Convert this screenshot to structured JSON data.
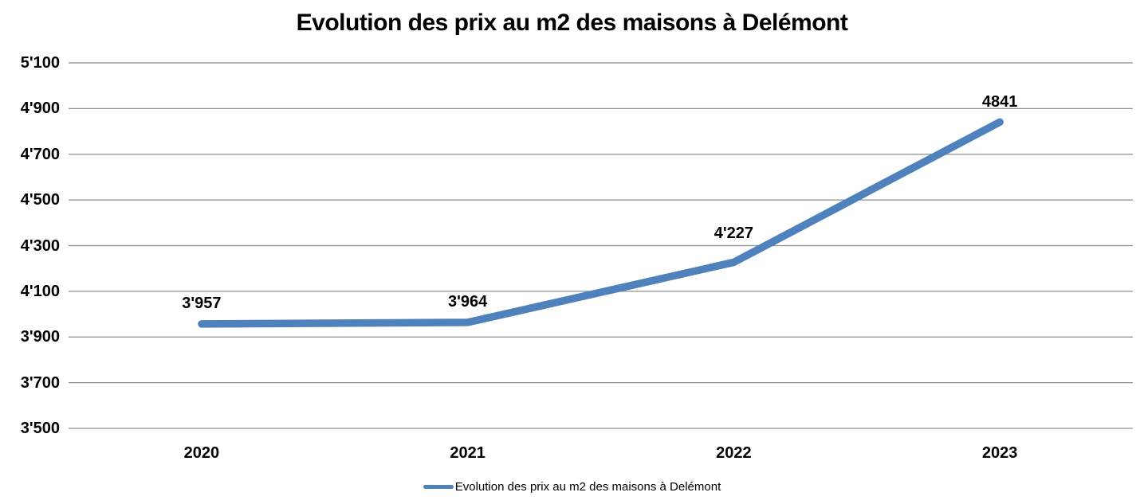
{
  "chart_data": {
    "type": "line",
    "title": "Evolution des prix au m2 des maisons à Delémont",
    "series_name": "Evolution des prix au m2 des maisons à Delémont",
    "categories": [
      "2020",
      "2021",
      "2022",
      "2023"
    ],
    "values": [
      3957,
      3964,
      4227,
      4841
    ],
    "data_labels": [
      "3'957",
      "3'964",
      "4'227",
      "4841"
    ],
    "y_tick_values": [
      3500,
      3700,
      3900,
      4100,
      4300,
      4500,
      4700,
      4900,
      5100
    ],
    "y_tick_labels": [
      "3'500",
      "3'700",
      "3'900",
      "4'100",
      "4'300",
      "4'500",
      "4'700",
      "4'900",
      "5'100"
    ],
    "ylim": [
      3500,
      5100
    ],
    "grid": true,
    "legend_position": "bottom",
    "line_color": "#4F81BD",
    "gridline_color": "#8E8E8E",
    "label_color": "#000000"
  }
}
